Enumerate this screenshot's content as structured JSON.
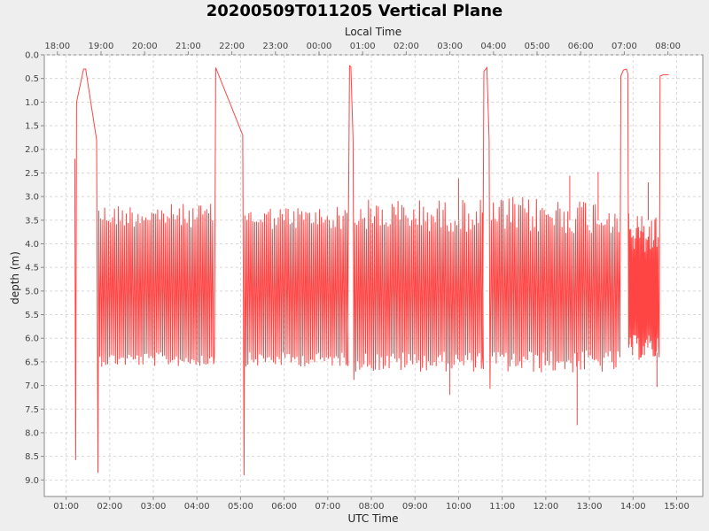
{
  "chart_data": {
    "type": "line",
    "title": "20200509T011205 Vertical Plane",
    "xlabel_bottom": "UTC Time",
    "xlabel_top": "Local Time",
    "ylabel": "depth (m)",
    "y_inverted": true,
    "ylim": [
      0.0,
      9.35
    ],
    "xlim_utc_hours": [
      0.5,
      15.6
    ],
    "grid": true,
    "series_color": "#ff4444",
    "x_ticks_bottom": [
      "01:00",
      "02:00",
      "03:00",
      "04:00",
      "05:00",
      "06:00",
      "07:00",
      "08:00",
      "09:00",
      "10:00",
      "11:00",
      "12:00",
      "13:00",
      "14:00",
      "15:00"
    ],
    "x_ticks_top": [
      "18:00",
      "19:00",
      "20:00",
      "21:00",
      "22:00",
      "23:00",
      "00:00",
      "01:00",
      "02:00",
      "03:00",
      "04:00",
      "05:00",
      "06:00",
      "07:00",
      "08:00"
    ],
    "y_ticks": [
      "0.0",
      "0.5",
      "1.0",
      "1.5",
      "2.0",
      "2.5",
      "3.0",
      "3.5",
      "4.0",
      "4.5",
      "5.0",
      "5.5",
      "6.0",
      "6.5",
      "7.0",
      "7.5",
      "8.0",
      "8.5",
      "9.0"
    ],
    "series": [
      {
        "values_note_free": true,
        "segments": [
          {
            "kind": "line",
            "points": [
              [
                1.2,
                2.2
              ],
              [
                1.22,
                8.58
              ],
              [
                1.24,
                1.0
              ],
              [
                1.4,
                0.3
              ],
              [
                1.45,
                0.3
              ],
              [
                1.7,
                1.8
              ],
              [
                1.73,
                8.85
              ],
              [
                1.75,
                3.3
              ]
            ]
          },
          {
            "kind": "yo",
            "t0": 1.75,
            "t1": 4.4,
            "period": 0.045,
            "top": 3.4,
            "bottom": 6.45,
            "jitter": 0.25
          },
          {
            "kind": "line",
            "points": [
              [
                4.4,
                6.4
              ],
              [
                4.43,
                0.27
              ],
              [
                5.05,
                1.7
              ],
              [
                5.08,
                8.9
              ],
              [
                5.1,
                3.4
              ]
            ]
          },
          {
            "kind": "yo",
            "t0": 5.1,
            "t1": 7.45,
            "period": 0.045,
            "top": 3.45,
            "bottom": 6.45,
            "jitter": 0.25
          },
          {
            "kind": "line",
            "points": [
              [
                7.45,
                6.5
              ],
              [
                7.5,
                0.23
              ],
              [
                7.53,
                0.25
              ],
              [
                7.58,
                1.8
              ],
              [
                7.6,
                6.88
              ],
              [
                7.62,
                3.7
              ]
            ]
          },
          {
            "kind": "yo",
            "t0": 7.62,
            "t1": 10.55,
            "period": 0.045,
            "top": 3.4,
            "bottom": 6.5,
            "jitter": 0.35
          },
          {
            "kind": "line",
            "points": [
              [
                10.55,
                6.4
              ],
              [
                10.58,
                0.35
              ],
              [
                10.65,
                0.27
              ],
              [
                10.7,
                1.8
              ],
              [
                10.72,
                7.07
              ],
              [
                10.75,
                3.5
              ]
            ]
          },
          {
            "kind": "yo",
            "t0": 10.75,
            "t1": 13.7,
            "period": 0.045,
            "top": 3.4,
            "bottom": 6.5,
            "jitter": 0.4
          },
          {
            "kind": "line",
            "points": [
              [
                13.7,
                6.4
              ],
              [
                13.72,
                0.45
              ],
              [
                13.78,
                0.32
              ],
              [
                13.85,
                0.3
              ],
              [
                13.88,
                0.4
              ],
              [
                13.9,
                6.2
              ]
            ]
          },
          {
            "kind": "yo",
            "t0": 13.9,
            "t1": 14.6,
            "period": 0.025,
            "top": 3.8,
            "bottom": 6.2,
            "jitter": 0.45
          },
          {
            "kind": "line",
            "points": [
              [
                14.6,
                6.4
              ],
              [
                14.62,
                0.45
              ],
              [
                14.7,
                0.42
              ],
              [
                14.82,
                0.42
              ]
            ]
          }
        ],
        "extremes": [
          [
            12.72,
            7.84
          ],
          [
            9.8,
            7.2
          ],
          [
            14.55,
            7.03
          ],
          [
            10.0,
            2.62
          ],
          [
            12.55,
            2.56
          ],
          [
            13.2,
            2.48
          ],
          [
            14.35,
            2.7
          ]
        ]
      }
    ]
  }
}
